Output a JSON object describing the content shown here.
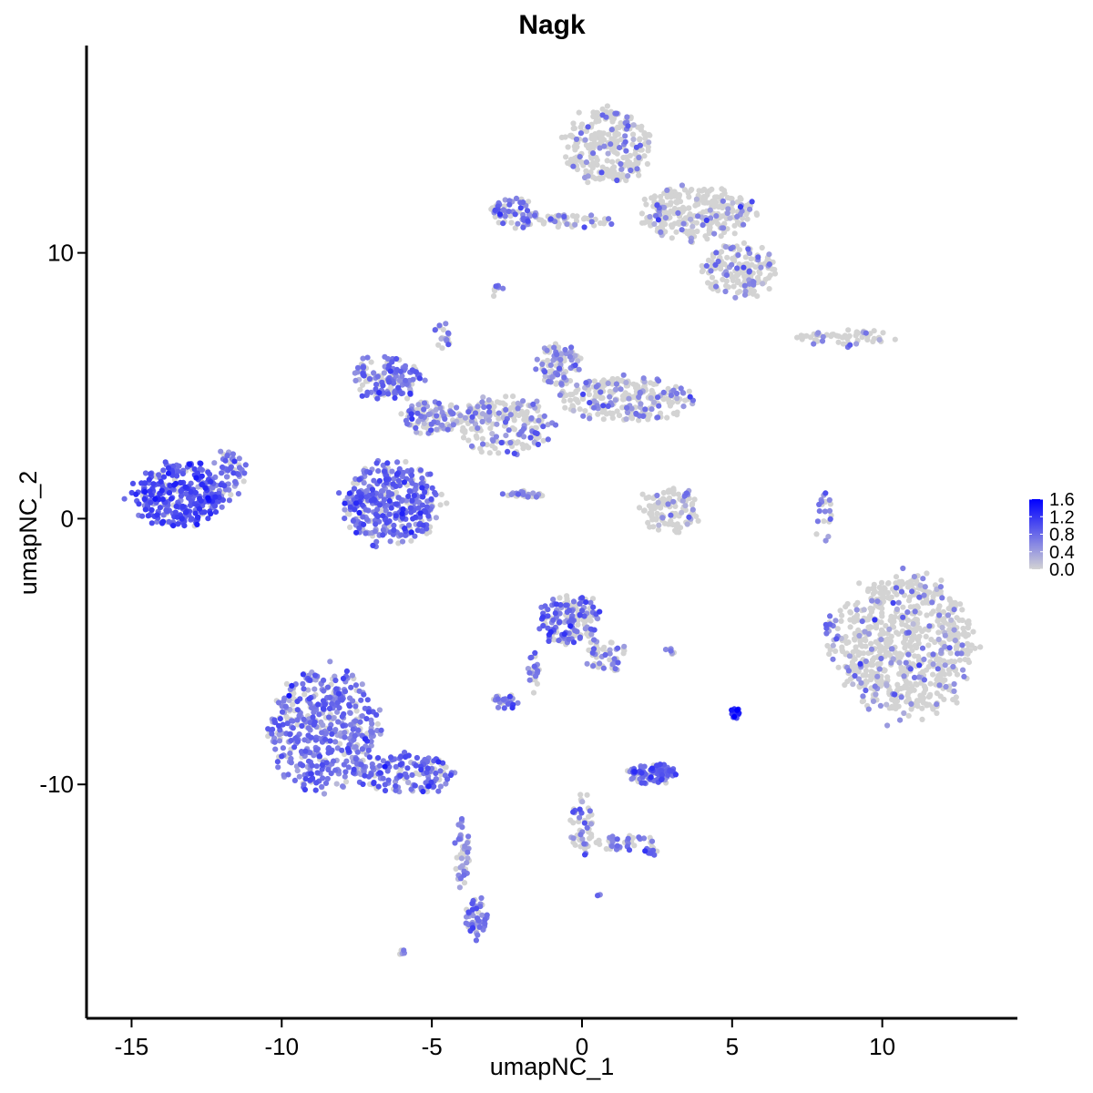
{
  "chart_data": {
    "type": "scatter",
    "title": "Nagk",
    "xlabel": "umapNC_1",
    "ylabel": "umapNC_2",
    "xlim": [
      -16.5,
      14.5
    ],
    "ylim": [
      -18.8,
      17.8
    ],
    "x_ticks": [
      -15,
      -10,
      -5,
      0,
      5,
      10
    ],
    "x_tick_labels": [
      "-15",
      "-10",
      "-5",
      "0",
      "5",
      "10"
    ],
    "y_ticks": [
      -10,
      0,
      10
    ],
    "y_tick_labels": [
      "-10",
      "0",
      "10"
    ],
    "grid": false,
    "legend_position": "right",
    "color_scale": {
      "low_color": "#d3d3d3",
      "high_color": "#0000ff",
      "min": 0.0,
      "max": 1.6,
      "breaks": [
        1.6,
        1.2,
        0.8,
        0.4,
        0.0
      ],
      "break_labels": [
        "1.6",
        "1.2",
        "0.8",
        "0.4",
        "0.0"
      ]
    },
    "clusters": [
      {
        "cx": -13.5,
        "cy": 0.9,
        "rx": 1.5,
        "ry": 1.2,
        "n": 320,
        "frac_expr": 0.85,
        "mean_expr": 0.95
      },
      {
        "cx": -11.8,
        "cy": 1.6,
        "rx": 0.6,
        "ry": 0.9,
        "n": 60,
        "frac_expr": 0.7,
        "mean_expr": 0.7
      },
      {
        "cx": -8.6,
        "cy": -8.0,
        "rx": 1.8,
        "ry": 2.2,
        "n": 480,
        "frac_expr": 0.85,
        "mean_expr": 0.7
      },
      {
        "cx": -5.8,
        "cy": -9.6,
        "rx": 1.6,
        "ry": 0.7,
        "n": 150,
        "frac_expr": 0.75,
        "mean_expr": 0.75
      },
      {
        "cx": -4.0,
        "cy": -12.5,
        "rx": 0.25,
        "ry": 1.5,
        "n": 40,
        "frac_expr": 0.6,
        "mean_expr": 0.6
      },
      {
        "cx": -3.5,
        "cy": -15.0,
        "rx": 0.35,
        "ry": 0.8,
        "n": 50,
        "frac_expr": 0.8,
        "mean_expr": 0.7
      },
      {
        "cx": -6.3,
        "cy": 0.6,
        "rx": 1.6,
        "ry": 1.5,
        "n": 380,
        "frac_expr": 0.8,
        "mean_expr": 0.75
      },
      {
        "cx": -6.5,
        "cy": 5.3,
        "rx": 1.1,
        "ry": 0.8,
        "n": 140,
        "frac_expr": 0.75,
        "mean_expr": 0.7
      },
      {
        "cx": -5.0,
        "cy": 3.8,
        "rx": 1.0,
        "ry": 0.6,
        "n": 100,
        "frac_expr": 0.55,
        "mean_expr": 0.6
      },
      {
        "cx": -2.6,
        "cy": 3.5,
        "rx": 1.5,
        "ry": 1.1,
        "n": 200,
        "frac_expr": 0.35,
        "mean_expr": 0.55
      },
      {
        "cx": -0.8,
        "cy": 5.8,
        "rx": 0.7,
        "ry": 0.8,
        "n": 90,
        "frac_expr": 0.5,
        "mean_expr": 0.6
      },
      {
        "cx": 1.5,
        "cy": 4.5,
        "rx": 2.2,
        "ry": 0.8,
        "n": 250,
        "frac_expr": 0.3,
        "mean_expr": 0.55
      },
      {
        "cx": -4.7,
        "cy": 6.8,
        "rx": 0.3,
        "ry": 0.6,
        "n": 20,
        "frac_expr": 0.6,
        "mean_expr": 0.6
      },
      {
        "cx": -2.0,
        "cy": 0.9,
        "rx": 0.7,
        "ry": 0.15,
        "n": 30,
        "frac_expr": 0.6,
        "mean_expr": 0.6
      },
      {
        "cx": 0.9,
        "cy": 14.0,
        "rx": 1.4,
        "ry": 1.4,
        "n": 280,
        "frac_expr": 0.15,
        "mean_expr": 0.55
      },
      {
        "cx": 3.8,
        "cy": 11.5,
        "rx": 1.8,
        "ry": 1.0,
        "n": 280,
        "frac_expr": 0.15,
        "mean_expr": 0.55
      },
      {
        "cx": 5.2,
        "cy": 9.3,
        "rx": 1.2,
        "ry": 1.0,
        "n": 160,
        "frac_expr": 0.25,
        "mean_expr": 0.6
      },
      {
        "cx": -2.2,
        "cy": 11.5,
        "rx": 0.8,
        "ry": 0.6,
        "n": 70,
        "frac_expr": 0.6,
        "mean_expr": 0.65
      },
      {
        "cx": -0.2,
        "cy": 11.2,
        "rx": 1.2,
        "ry": 0.25,
        "n": 50,
        "frac_expr": 0.35,
        "mean_expr": 0.55
      },
      {
        "cx": -2.8,
        "cy": 8.6,
        "rx": 0.2,
        "ry": 0.3,
        "n": 8,
        "frac_expr": 0.6,
        "mean_expr": 0.6
      },
      {
        "cx": 8.8,
        "cy": 6.8,
        "rx": 1.6,
        "ry": 0.3,
        "n": 60,
        "frac_expr": 0.25,
        "mean_expr": 0.55
      },
      {
        "cx": 2.9,
        "cy": 0.3,
        "rx": 0.9,
        "ry": 0.9,
        "n": 110,
        "frac_expr": 0.15,
        "mean_expr": 0.5
      },
      {
        "cx": 8.0,
        "cy": 0.0,
        "rx": 0.3,
        "ry": 1.0,
        "n": 20,
        "frac_expr": 0.5,
        "mean_expr": 0.6
      },
      {
        "cx": 10.8,
        "cy": -4.8,
        "rx": 2.2,
        "ry": 2.6,
        "n": 750,
        "frac_expr": 0.15,
        "mean_expr": 0.55
      },
      {
        "cx": -0.4,
        "cy": -3.8,
        "rx": 1.0,
        "ry": 0.9,
        "n": 160,
        "frac_expr": 0.6,
        "mean_expr": 0.75
      },
      {
        "cx": 0.8,
        "cy": -5.2,
        "rx": 0.7,
        "ry": 0.6,
        "n": 50,
        "frac_expr": 0.4,
        "mean_expr": 0.6
      },
      {
        "cx": -1.6,
        "cy": -5.8,
        "rx": 0.2,
        "ry": 0.7,
        "n": 20,
        "frac_expr": 0.6,
        "mean_expr": 0.6
      },
      {
        "cx": -2.6,
        "cy": -6.9,
        "rx": 0.4,
        "ry": 0.3,
        "n": 30,
        "frac_expr": 0.6,
        "mean_expr": 0.7
      },
      {
        "cx": 2.3,
        "cy": -9.6,
        "rx": 0.8,
        "ry": 0.35,
        "n": 100,
        "frac_expr": 0.8,
        "mean_expr": 0.75
      },
      {
        "cx": 5.1,
        "cy": -7.3,
        "rx": 0.15,
        "ry": 0.25,
        "n": 15,
        "frac_expr": 1.0,
        "mean_expr": 1.3
      },
      {
        "cx": 0.0,
        "cy": -11.5,
        "rx": 0.4,
        "ry": 1.2,
        "n": 50,
        "frac_expr": 0.4,
        "mean_expr": 0.6
      },
      {
        "cx": 1.5,
        "cy": -12.2,
        "rx": 1.0,
        "ry": 0.3,
        "n": 40,
        "frac_expr": 0.4,
        "mean_expr": 0.6
      },
      {
        "cx": 2.3,
        "cy": -12.5,
        "rx": 0.2,
        "ry": 0.2,
        "n": 12,
        "frac_expr": 0.8,
        "mean_expr": 0.9
      },
      {
        "cx": -6.0,
        "cy": -16.3,
        "rx": 0.15,
        "ry": 0.1,
        "n": 5,
        "frac_expr": 0.4,
        "mean_expr": 0.5
      },
      {
        "cx": 3.0,
        "cy": -5.0,
        "rx": 0.3,
        "ry": 0.1,
        "n": 8,
        "frac_expr": 0.4,
        "mean_expr": 0.5
      },
      {
        "cx": 8.3,
        "cy": -4.5,
        "rx": 0.2,
        "ry": 0.8,
        "n": 20,
        "frac_expr": 0.5,
        "mean_expr": 0.6
      },
      {
        "cx": 0.6,
        "cy": -14.2,
        "rx": 0.1,
        "ry": 0.1,
        "n": 4,
        "frac_expr": 0.8,
        "mean_expr": 0.7
      }
    ]
  }
}
